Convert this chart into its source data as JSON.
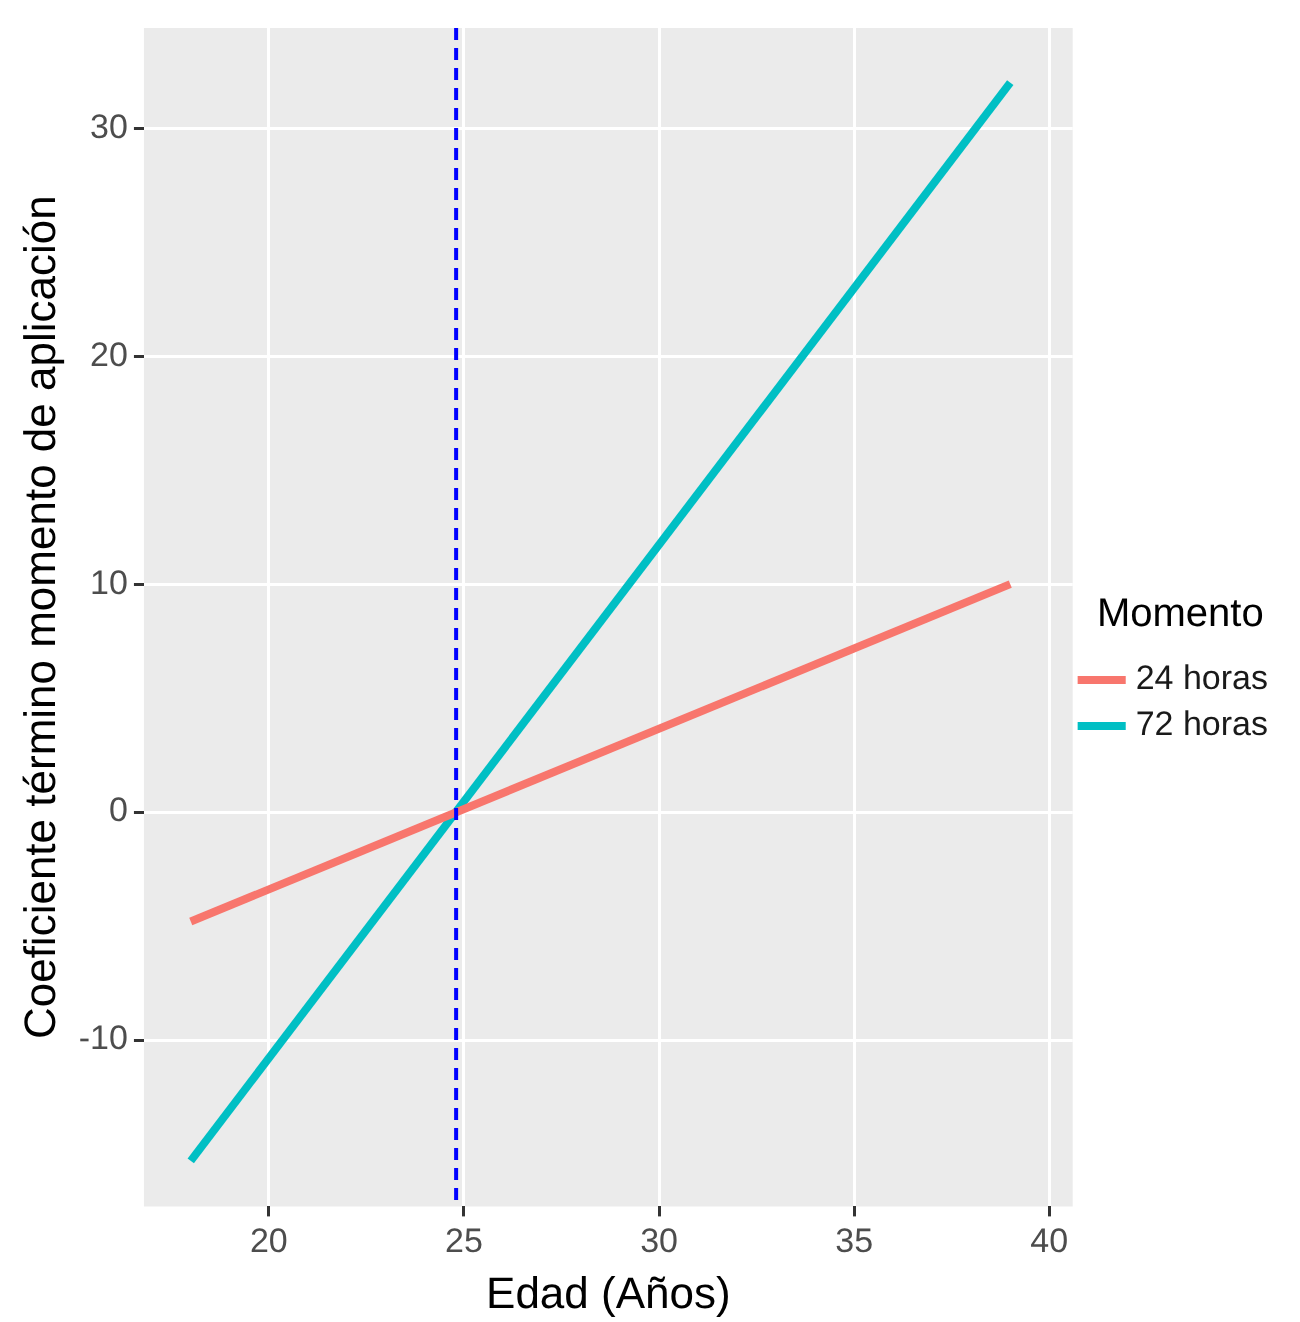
{
  "chart_data": {
    "type": "line",
    "xlabel": "Edad (Años)",
    "ylabel": "Coeficiente término momento de aplicación",
    "legend_title": "Momento",
    "x": [
      18,
      39
    ],
    "series": [
      {
        "name": "24 horas",
        "color": "#f8766d",
        "values": [
          -4.8,
          10.0
        ]
      },
      {
        "name": "72 horas",
        "color": "#00bfc4",
        "values": [
          -15.3,
          32.0
        ]
      }
    ],
    "xlim": [
      16.8,
      40.6
    ],
    "xticks": [
      20,
      25,
      30,
      35,
      40
    ],
    "ylim": [
      -17.3,
      34.4
    ],
    "yticks": [
      -10,
      0,
      10,
      20,
      30
    ],
    "ref_lines": [
      {
        "axis": "x",
        "value": 24.8,
        "color": "#0000ff",
        "line_style": "dashed"
      }
    ],
    "grid": true,
    "legend": "right",
    "marker": "none",
    "line_style": "solid"
  }
}
